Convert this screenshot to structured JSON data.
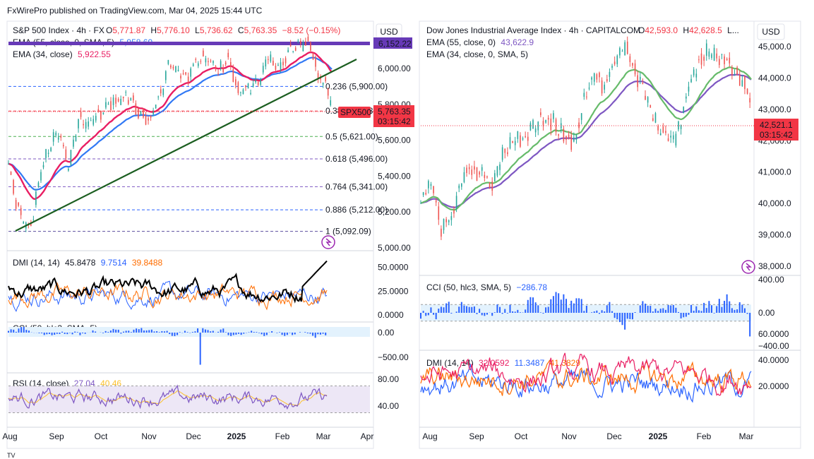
{
  "header": {
    "published": "FxWirePro published on TradingView.com, Mar 04, 2025 15:44 UTC"
  },
  "footer": {
    "tv_logo_text": "TV"
  },
  "colors": {
    "bg": "#ffffff",
    "grid": "#e6e9ef",
    "border": "#e0e3eb",
    "price": "#26a69a",
    "down": "#ef5350",
    "ema55_spx": "#3179f5",
    "ema34_spx": "#e91e63",
    "ema55_dji": "#7e57c2",
    "ema34_dji": "#66bb6a",
    "trendline": "#1b5e20",
    "purple_bar": "#673ab7",
    "dmi_adx": "#000000",
    "dmi_plus": "#2962ff",
    "dmi_minus": "#ff6d00",
    "cci": "#2962ff",
    "rsi": "#7e57c2",
    "rsi_ma": "#fbc02d",
    "price_tag": "#f23645"
  },
  "left": {
    "title": "S&P 500 Index · 4h · FX",
    "ohlc": {
      "o_label": "O",
      "o": "5,771.87",
      "h_label": "H",
      "h": "5,776.10",
      "l_label": "L",
      "l": "5,736.62",
      "c_label": "C",
      "c": "5,763.35",
      "chg": "−8.52 (−0.15%)"
    },
    "ema55": {
      "label": "EMA (55, close, 0, SMA, 5)",
      "value": "5,958.69"
    },
    "ema34": {
      "label": "EMA (34, close)",
      "value": "5,922.55"
    },
    "currency": "USD",
    "purple_level_label": "6,152.22",
    "price_tag": {
      "symbol": "SPX500",
      "price": "5,763.35",
      "timer": "03:15:42"
    },
    "price_axis": [
      "6,000.00",
      "5,800.00",
      "5,600.00",
      "5,400.00",
      "5,200.00",
      "5,000.00"
    ],
    "fib_levels": [
      {
        "ratio": "0.236",
        "text": "0.236 (5,900.00)",
        "price": 5900,
        "color": "#2962ff"
      },
      {
        "ratio": "0.382",
        "text": "0.382 (5,763.00)",
        "price": 5763,
        "color": "#f23645"
      },
      {
        "ratio": "0.5",
        "text": "0.5 (5,621.00)",
        "price": 5621,
        "color": "#4caf50"
      },
      {
        "ratio": "0.618",
        "text": "0.618 (5,496.00)",
        "price": 5496,
        "color": "#7e57c2"
      },
      {
        "ratio": "0.764",
        "text": "0.764 (5,341.00)",
        "price": 5341,
        "color": "#7e57c2"
      },
      {
        "ratio": "0.886",
        "text": "0.886 (5,212.00)",
        "price": 5212,
        "color": "#2962ff"
      },
      {
        "ratio": "1",
        "text": "1 (5,092.09)",
        "price": 5092.09,
        "color": "#5d4f9e"
      }
    ],
    "dmi": {
      "label": "DMI (14, 14)",
      "v1": "45.8478",
      "v2": "9.7514",
      "v3": "39.8488",
      "axis": [
        "50.0000",
        "25.0000",
        "0.0000"
      ]
    },
    "cci": {
      "label": "CCI (50, hlc3, SMA, 5)",
      "axis": [
        "0.00",
        "−500.00"
      ]
    },
    "rsi": {
      "label": "RSI (14, close)",
      "v1": "27.04",
      "v2": "40.46",
      "axis": [
        "80.00",
        "40.00"
      ]
    },
    "time_axis": [
      "Aug",
      "Sep",
      "Oct",
      "Nov",
      "Dec",
      "2025",
      "Feb",
      "Mar",
      "Apr"
    ]
  },
  "right": {
    "title": "Dow Jones Industrial Average Index · 4h · CAPITALCOM",
    "ohlc": {
      "o_label": "O",
      "o": "42,593.0",
      "h_label": "H",
      "h": "42,628.5",
      "more": "L..."
    },
    "ema55": {
      "label": "EMA (55, close, 0)",
      "value": "43,622.9"
    },
    "ema34": {
      "label": "EMA (34, close, 0, SMA, 5)"
    },
    "currency": "USD",
    "price_tag": {
      "price": "42,521.1",
      "timer": "03:15:42"
    },
    "price_axis": [
      "45,000.0",
      "44,000.0",
      "43,000.0",
      "42,000.0",
      "41,000.0",
      "40,000.0",
      "39,000.0",
      "38,000.0"
    ],
    "cci": {
      "label": "CCI (50, hlc3, SMA, 5)",
      "value": "−286.78",
      "axis": [
        "400.00",
        "0.00",
        "−400.00"
      ]
    },
    "dmi": {
      "label": "DMI (14, 14)",
      "v1": "32.0592",
      "v2": "11.3487",
      "v3": "41.3829",
      "axis": [
        "60.0000",
        "40.0000",
        "20.0000"
      ]
    },
    "time_axis": [
      "Aug",
      "Sep",
      "Oct",
      "Nov",
      "Dec",
      "2025",
      "Feb",
      "Mar"
    ]
  },
  "chart_data": [
    {
      "type": "line",
      "title": "S&P 500 Index · 4h · FX",
      "series_name": "SPX500 close (approx.)",
      "x": [
        "Aug",
        "Sep",
        "Oct",
        "Nov",
        "Dec",
        "2025",
        "Feb",
        "Mar"
      ],
      "ylim": [
        4950,
        6200
      ],
      "anchors": [
        [
          0,
          5460
        ],
        [
          2,
          5300
        ],
        [
          5,
          5160
        ],
        [
          9,
          5110
        ],
        [
          12,
          5370
        ],
        [
          16,
          5560
        ],
        [
          20,
          5640
        ],
        [
          24,
          5450
        ],
        [
          28,
          5720
        ],
        [
          32,
          5700
        ],
        [
          36,
          5740
        ],
        [
          40,
          5800
        ],
        [
          44,
          5820
        ],
        [
          48,
          5840
        ],
        [
          52,
          5760
        ],
        [
          56,
          5710
        ],
        [
          60,
          5820
        ],
        [
          64,
          6020
        ],
        [
          68,
          5980
        ],
        [
          72,
          5960
        ],
        [
          76,
          6050
        ],
        [
          80,
          6070
        ],
        [
          84,
          5980
        ],
        [
          88,
          6060
        ],
        [
          92,
          5860
        ],
        [
          96,
          5900
        ],
        [
          100,
          5920
        ],
        [
          104,
          6060
        ],
        [
          108,
          6000
        ],
        [
          112,
          6080
        ],
        [
          116,
          6130
        ],
        [
          120,
          6150
        ],
        [
          124,
          5960
        ],
        [
          127,
          5900
        ],
        [
          130,
          5763
        ]
      ],
      "fib_levels": [
        5900,
        5763,
        5621,
        5496,
        5341,
        5212,
        5092.09
      ],
      "trendline": [
        [
          5092,
          0
        ],
        [
          6050,
          1
        ]
      ]
    },
    {
      "type": "line",
      "title": "Dow Jones Industrial Average Index · 4h · CAPITALCOM",
      "series_name": "DJI close (approx.)",
      "x": [
        "Aug",
        "Sep",
        "Oct",
        "Nov",
        "Dec",
        "2025",
        "Feb",
        "Mar"
      ],
      "ylim": [
        37800,
        45300
      ],
      "anchors": [
        [
          0,
          40100
        ],
        [
          4,
          40700
        ],
        [
          8,
          39200
        ],
        [
          12,
          39500
        ],
        [
          16,
          40800
        ],
        [
          20,
          41100
        ],
        [
          24,
          40900
        ],
        [
          28,
          40600
        ],
        [
          32,
          41600
        ],
        [
          36,
          42000
        ],
        [
          40,
          42100
        ],
        [
          44,
          42400
        ],
        [
          48,
          42700
        ],
        [
          52,
          42600
        ],
        [
          56,
          42200
        ],
        [
          60,
          41900
        ],
        [
          64,
          43400
        ],
        [
          68,
          44100
        ],
        [
          72,
          43700
        ],
        [
          76,
          44500
        ],
        [
          80,
          45000
        ],
        [
          84,
          44200
        ],
        [
          88,
          43500
        ],
        [
          92,
          42600
        ],
        [
          96,
          42200
        ],
        [
          100,
          42100
        ],
        [
          104,
          43400
        ],
        [
          108,
          44400
        ],
        [
          112,
          44800
        ],
        [
          116,
          44600
        ],
        [
          120,
          44500
        ],
        [
          124,
          44100
        ],
        [
          128,
          43700
        ],
        [
          130,
          42521
        ]
      ]
    }
  ]
}
